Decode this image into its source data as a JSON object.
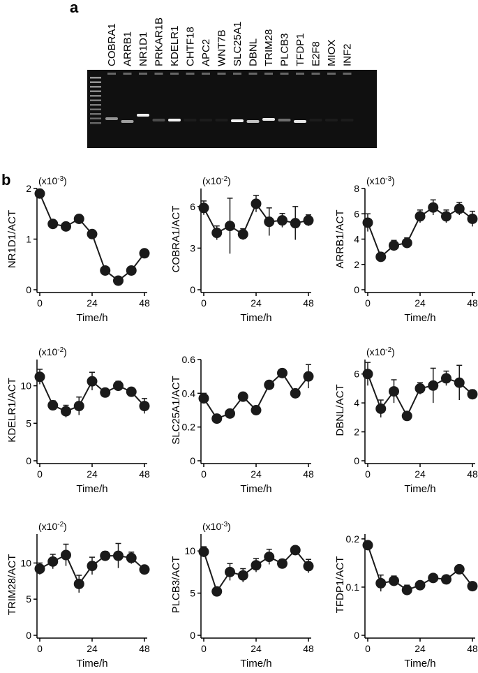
{
  "panel_a": {
    "label": "a",
    "lanes": [
      "COBRA1",
      "ARRB1",
      "NR1D1",
      "PRKAR1B",
      "KDELR1",
      "CHTF18",
      "APC2",
      "WNT7B",
      "SLC25A1",
      "DBNL",
      "TRIM28",
      "PLCB3",
      "TFDP1",
      "E2F8",
      "MIOX",
      "INF2"
    ]
  },
  "panel_b": {
    "label": "b"
  },
  "chart_data": [
    {
      "type": "line",
      "ylabel": "NR1D1/ACT",
      "xlabel": "Time/h",
      "scale_label": [
        "(x10",
        "-3",
        ")"
      ],
      "x": [
        0,
        6,
        12,
        18,
        24,
        30,
        36,
        42,
        48
      ],
      "values": [
        1.9,
        1.3,
        1.25,
        1.4,
        1.1,
        0.38,
        0.18,
        0.38,
        0.72
      ],
      "errors": [
        null,
        null,
        null,
        null,
        null,
        null,
        null,
        null,
        null
      ],
      "color": "#1a1a1a",
      "xlim": [
        0,
        48
      ],
      "xticks": [
        0,
        24,
        48
      ],
      "ylim": [
        0,
        2
      ],
      "yticks": [
        0,
        1,
        2
      ]
    },
    {
      "type": "line",
      "ylabel": "COBRA1/ACT",
      "xlabel": "Time/h",
      "scale_label": [
        "(x10",
        "-2",
        ")"
      ],
      "x": [
        0,
        6,
        12,
        18,
        24,
        30,
        36,
        42,
        48
      ],
      "values": [
        5.9,
        4.1,
        4.6,
        4.0,
        6.2,
        4.9,
        5.0,
        4.8,
        5.0
      ],
      "errors": [
        0.5,
        0.5,
        2.0,
        0.4,
        0.6,
        1.0,
        0.5,
        1.2,
        0.4
      ],
      "color": "#1a1a1a",
      "xlim": [
        0,
        48
      ],
      "xticks": [
        0,
        24,
        48
      ],
      "ylim": [
        0,
        7.3
      ],
      "yticks": [
        0,
        3,
        6
      ]
    },
    {
      "type": "line",
      "ylabel": "ARRB1/ACT",
      "xlabel": "Time/h",
      "scale_label": [
        "(x10",
        "-3",
        ")"
      ],
      "x": [
        0,
        6,
        12,
        18,
        24,
        30,
        36,
        42,
        48
      ],
      "values": [
        5.3,
        2.6,
        3.5,
        3.7,
        5.8,
        6.5,
        5.8,
        6.4,
        5.6
      ],
      "errors": [
        0.7,
        null,
        0.4,
        0.4,
        0.5,
        0.6,
        0.5,
        0.5,
        0.6
      ],
      "color": "#1a1a1a",
      "xlim": [
        0,
        48
      ],
      "xticks": [
        0,
        24,
        48
      ],
      "ylim": [
        0,
        8
      ],
      "yticks": [
        0,
        2,
        4,
        6,
        8
      ]
    },
    {
      "type": "line",
      "ylabel": "KDELR1/ACT",
      "xlabel": "Time/h",
      "scale_label": [
        "(x10",
        "-2",
        ")"
      ],
      "x": [
        0,
        6,
        12,
        18,
        24,
        30,
        36,
        42,
        48
      ],
      "values": [
        11.2,
        7.4,
        6.6,
        7.3,
        10.6,
        9.1,
        10.0,
        9.2,
        7.3
      ],
      "errors": [
        1.0,
        0.6,
        0.8,
        1.2,
        1.2,
        0.4,
        0.6,
        0.5,
        1.0
      ],
      "color": "#1a1a1a",
      "xlim": [
        0,
        48
      ],
      "xticks": [
        0,
        24,
        48
      ],
      "ylim": [
        0,
        13.5
      ],
      "yticks": [
        0,
        5,
        10
      ]
    },
    {
      "type": "line",
      "ylabel": "SLC25A1/ACT",
      "xlabel": "Time/h",
      "x": [
        0,
        6,
        12,
        18,
        24,
        30,
        36,
        42,
        48
      ],
      "values": [
        0.37,
        0.25,
        0.28,
        0.38,
        0.3,
        0.45,
        0.52,
        0.4,
        0.5
      ],
      "errors": [
        0.03,
        null,
        null,
        null,
        null,
        null,
        null,
        null,
        0.07
      ],
      "color": "#1a1a1a",
      "xlim": [
        0,
        48
      ],
      "xticks": [
        0,
        24,
        48
      ],
      "ylim": [
        0,
        0.6
      ],
      "yticks": [
        0,
        0.2,
        0.4,
        0.6
      ]
    },
    {
      "type": "line",
      "ylabel": "DBNL/ACT",
      "xlabel": "Time/h",
      "scale_label": [
        "(x10",
        "-2",
        ")"
      ],
      "x": [
        0,
        6,
        12,
        18,
        24,
        30,
        36,
        42,
        48
      ],
      "values": [
        6.0,
        3.6,
        4.8,
        3.1,
        5.0,
        5.2,
        5.7,
        5.4,
        4.6
      ],
      "errors": [
        0.8,
        0.6,
        0.8,
        null,
        0.4,
        1.2,
        0.5,
        1.2,
        0.3
      ],
      "color": "#1a1a1a",
      "xlim": [
        0,
        48
      ],
      "xticks": [
        0,
        24,
        48
      ],
      "ylim": [
        0,
        7
      ],
      "yticks": [
        0,
        2,
        4,
        6
      ]
    },
    {
      "type": "line",
      "ylabel": "TRIM28/ACT",
      "xlabel": "Time/h",
      "scale_label": [
        "(x10",
        "-2",
        ")"
      ],
      "x": [
        0,
        6,
        12,
        18,
        24,
        30,
        36,
        42,
        48
      ],
      "values": [
        9.2,
        10.2,
        11.1,
        7.1,
        9.6,
        11.0,
        11.0,
        10.7,
        9.1
      ],
      "errors": [
        0.8,
        1.0,
        1.5,
        1.2,
        1.2,
        0.6,
        1.7,
        0.8,
        null
      ],
      "color": "#1a1a1a",
      "xlim": [
        0,
        48
      ],
      "xticks": [
        0,
        24,
        48
      ],
      "ylim": [
        0,
        14
      ],
      "yticks": [
        0,
        5,
        10
      ]
    },
    {
      "type": "line",
      "ylabel": "PLCB3/ACT",
      "xlabel": "Time/h",
      "scale_label": [
        "(x10",
        "-3",
        ")"
      ],
      "x": [
        0,
        6,
        12,
        18,
        24,
        30,
        36,
        42,
        48
      ],
      "values": [
        9.9,
        5.2,
        7.5,
        7.1,
        8.3,
        9.3,
        8.5,
        10.1,
        8.2
      ],
      "errors": [
        0.6,
        null,
        1.0,
        0.8,
        0.8,
        0.9,
        0.5,
        null,
        0.8
      ],
      "color": "#1a1a1a",
      "xlim": [
        0,
        48
      ],
      "xticks": [
        0,
        24,
        48
      ],
      "ylim": [
        0,
        12
      ],
      "yticks": [
        0,
        5,
        10
      ]
    },
    {
      "type": "line",
      "ylabel": "TFDP1/ACT",
      "xlabel": "Time/h",
      "x": [
        0,
        6,
        12,
        18,
        24,
        30,
        36,
        42,
        48
      ],
      "values": [
        0.187,
        0.108,
        0.113,
        0.094,
        0.104,
        0.119,
        0.116,
        0.137,
        0.102
      ],
      "errors": [
        null,
        0.017,
        0.01,
        0.01,
        null,
        null,
        null,
        null,
        null
      ],
      "color": "#1a1a1a",
      "xlim": [
        0,
        48
      ],
      "xticks": [
        0,
        24,
        48
      ],
      "ylim": [
        0,
        0.21
      ],
      "yticks": [
        0,
        0.1,
        0.2
      ]
    }
  ]
}
